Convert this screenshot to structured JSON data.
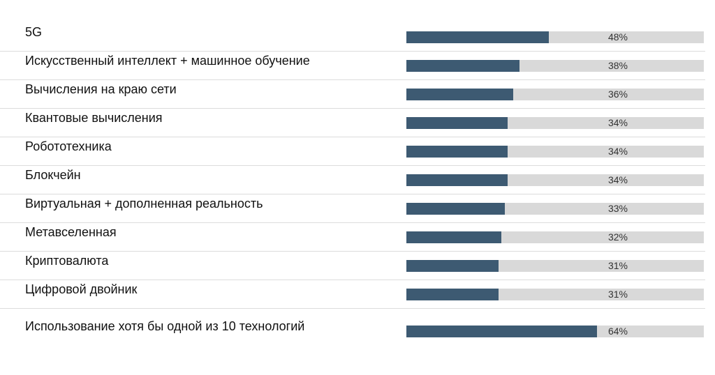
{
  "chart_data": {
    "type": "bar",
    "orientation": "horizontal",
    "categories": [
      "5G",
      "Искусственный интеллект + машинное обучение",
      "Вычисления на краю сети",
      "Квантовые вычисления",
      "Робототехника",
      "Блокчейн",
      "Виртуальная + дополненная реальность",
      "Метавселенная",
      "Криптовалюта",
      "Цифровой двойник"
    ],
    "values": [
      48,
      38,
      36,
      34,
      34,
      34,
      33,
      32,
      31,
      31
    ],
    "value_labels": [
      "48%",
      "38%",
      "36%",
      "34%",
      "34%",
      "34%",
      "33%",
      "32%",
      "31%",
      "31%"
    ],
    "summary": {
      "label": "Использование хотя бы одной из 10 технологий",
      "value": 64,
      "value_label": "64%"
    },
    "xlim": [
      0,
      100
    ],
    "grid": false,
    "colors": {
      "bar": "#3d5a72",
      "track": "#d9d9d9",
      "separator": "#dcdcdc"
    }
  }
}
